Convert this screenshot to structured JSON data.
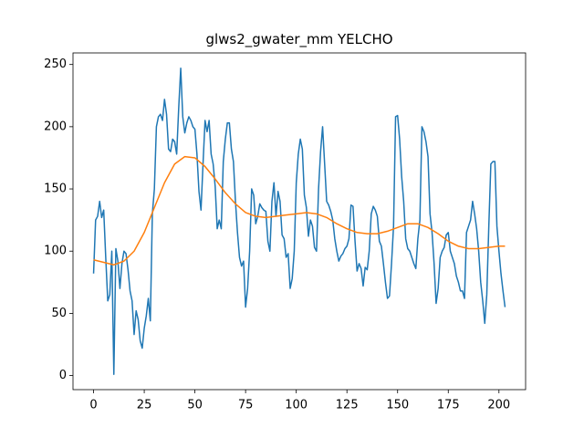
{
  "chart_data": {
    "type": "line",
    "title": "glws2_gwater_mm YELCHO",
    "xlim": [
      -10.15,
      213.15
    ],
    "xticks": [
      0,
      25,
      50,
      75,
      100,
      125,
      150,
      175,
      200
    ],
    "ylim": [
      -11.3,
      259.3
    ],
    "yticks": [
      0,
      50,
      100,
      150,
      200,
      250
    ],
    "series": [
      {
        "color": "#1f77b4",
        "x": [
          0,
          1,
          2,
          3,
          4,
          5,
          6,
          7,
          8,
          9,
          10,
          11,
          12,
          13,
          14,
          15,
          16,
          17,
          18,
          19,
          20,
          21,
          22,
          23,
          24,
          25,
          26,
          27,
          28,
          29,
          30,
          31,
          32,
          33,
          34,
          35,
          36,
          37,
          38,
          39,
          40,
          41,
          42,
          43,
          44,
          45,
          46,
          47,
          48,
          49,
          50,
          51,
          52,
          53,
          54,
          55,
          56,
          57,
          58,
          59,
          60,
          61,
          62,
          63,
          64,
          65,
          66,
          67,
          68,
          69,
          70,
          71,
          72,
          73,
          74,
          75,
          76,
          77,
          78,
          79,
          80,
          81,
          82,
          83,
          84,
          85,
          86,
          87,
          88,
          89,
          90,
          91,
          92,
          93,
          94,
          95,
          96,
          97,
          98,
          99,
          100,
          101,
          102,
          103,
          104,
          105,
          106,
          107,
          108,
          109,
          110,
          111,
          112,
          113,
          114,
          115,
          116,
          117,
          118,
          119,
          120,
          121,
          122,
          123,
          124,
          125,
          126,
          127,
          128,
          129,
          130,
          131,
          132,
          133,
          134,
          135,
          136,
          137,
          138,
          139,
          140,
          141,
          142,
          143,
          144,
          145,
          146,
          147,
          148,
          149,
          150,
          151,
          152,
          153,
          154,
          155,
          156,
          157,
          158,
          159,
          160,
          161,
          162,
          163,
          164,
          165,
          166,
          167,
          168,
          169,
          170,
          171,
          172,
          173,
          174,
          175,
          176,
          177,
          178,
          179,
          180,
          181,
          182,
          183,
          184,
          185,
          186,
          187,
          188,
          189,
          190,
          191,
          192,
          193,
          194,
          195,
          196,
          197,
          198,
          199,
          200,
          201,
          202,
          203
        ],
        "values": [
          82,
          125,
          128,
          140,
          127,
          133,
          95,
          60,
          65,
          100,
          1,
          102,
          92,
          70,
          90,
          100,
          98,
          85,
          68,
          60,
          33,
          52,
          45,
          28,
          22,
          38,
          48,
          62,
          44,
          130,
          150,
          200,
          208,
          210,
          205,
          222,
          210,
          182,
          180,
          190,
          188,
          178,
          215,
          247,
          208,
          195,
          203,
          208,
          205,
          200,
          198,
          178,
          148,
          133,
          170,
          205,
          196,
          205,
          178,
          170,
          152,
          118,
          125,
          118,
          172,
          190,
          203,
          203,
          182,
          172,
          140,
          115,
          95,
          88,
          92,
          55,
          70,
          100,
          150,
          145,
          122,
          128,
          138,
          135,
          133,
          132,
          108,
          100,
          140,
          155,
          128,
          148,
          140,
          113,
          110,
          95,
          98,
          70,
          78,
          100,
          155,
          178,
          190,
          182,
          145,
          135,
          112,
          125,
          120,
          103,
          100,
          150,
          180,
          200,
          170,
          140,
          137,
          132,
          125,
          110,
          100,
          92,
          96,
          98,
          102,
          104,
          110,
          137,
          136,
          108,
          84,
          90,
          86,
          72,
          87,
          85,
          100,
          130,
          136,
          133,
          128,
          108,
          104,
          90,
          75,
          62,
          64,
          90,
          120,
          208,
          209,
          190,
          160,
          140,
          110,
          102,
          100,
          95,
          90,
          86,
          110,
          125,
          200,
          196,
          188,
          176,
          130,
          115,
          90,
          58,
          70,
          95,
          100,
          103,
          113,
          115,
          100,
          95,
          90,
          80,
          75,
          68,
          68,
          62,
          115,
          120,
          125,
          140,
          130,
          118,
          100,
          75,
          60,
          42,
          65,
          120,
          170,
          172,
          172,
          120,
          100,
          82,
          68,
          55
        ]
      },
      {
        "color": "#ff7f0e",
        "x": [
          0,
          5,
          10,
          15,
          20,
          25,
          30,
          35,
          40,
          45,
          50,
          55,
          60,
          65,
          70,
          75,
          80,
          85,
          90,
          95,
          100,
          105,
          110,
          115,
          120,
          125,
          130,
          135,
          140,
          145,
          150,
          155,
          160,
          165,
          170,
          175,
          180,
          185,
          190,
          195,
          200,
          203
        ],
        "values": [
          93,
          91,
          89,
          92,
          100,
          115,
          135,
          155,
          170,
          176,
          175,
          168,
          158,
          147,
          138,
          131,
          128,
          127,
          128,
          129,
          130,
          131,
          130,
          127,
          122,
          118,
          115,
          114,
          114,
          116,
          119,
          122,
          122,
          119,
          114,
          108,
          104,
          102,
          102,
          103,
          104,
          104
        ]
      }
    ]
  }
}
